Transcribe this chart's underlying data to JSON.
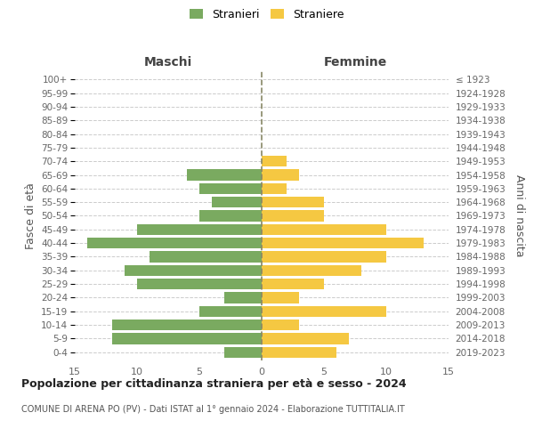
{
  "age_groups": [
    "0-4",
    "5-9",
    "10-14",
    "15-19",
    "20-24",
    "25-29",
    "30-34",
    "35-39",
    "40-44",
    "45-49",
    "50-54",
    "55-59",
    "60-64",
    "65-69",
    "70-74",
    "75-79",
    "80-84",
    "85-89",
    "90-94",
    "95-99",
    "100+"
  ],
  "birth_years": [
    "2019-2023",
    "2014-2018",
    "2009-2013",
    "2004-2008",
    "1999-2003",
    "1994-1998",
    "1989-1993",
    "1984-1988",
    "1979-1983",
    "1974-1978",
    "1969-1973",
    "1964-1968",
    "1959-1963",
    "1954-1958",
    "1949-1953",
    "1944-1948",
    "1939-1943",
    "1934-1938",
    "1929-1933",
    "1924-1928",
    "≤ 1923"
  ],
  "maschi": [
    3,
    12,
    12,
    5,
    3,
    10,
    11,
    9,
    14,
    10,
    5,
    4,
    5,
    6,
    0,
    0,
    0,
    0,
    0,
    0,
    0
  ],
  "femmine": [
    6,
    7,
    3,
    10,
    3,
    5,
    8,
    10,
    13,
    10,
    5,
    5,
    2,
    3,
    2,
    0,
    0,
    0,
    0,
    0,
    0
  ],
  "color_maschi": "#7aaa60",
  "color_femmine": "#f5c842",
  "title": "Popolazione per cittadinanza straniera per età e sesso - 2024",
  "subtitle": "COMUNE DI ARENA PO (PV) - Dati ISTAT al 1° gennaio 2024 - Elaborazione TUTTITALIA.IT",
  "legend_maschi": "Stranieri",
  "legend_femmine": "Straniere",
  "xlabel_maschi": "Maschi",
  "xlabel_femmine": "Femmine",
  "ylabel_left": "Fasce di età",
  "ylabel_right": "Anni di nascita",
  "xlim": 15,
  "bg_color": "#ffffff",
  "grid_color": "#cccccc",
  "bar_height": 0.8
}
